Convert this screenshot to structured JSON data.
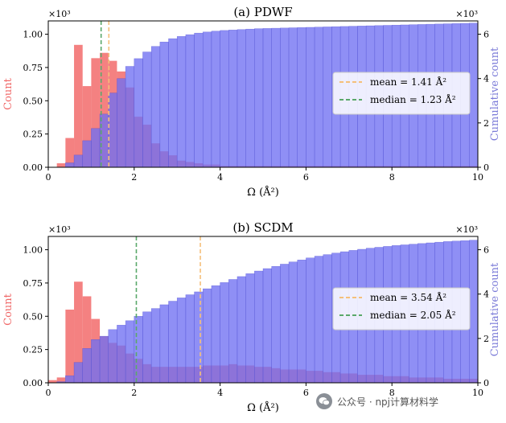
{
  "figure": {
    "watermark_text": "公众号 · npj计算材料学",
    "watermark_icon": "wechat-icon"
  },
  "colors": {
    "count_bars": "#f26b6b",
    "cumulative_bars": "#6f6ff2",
    "overlap": "#6a2bb8",
    "mean_line": "#f5c07a",
    "median_line": "#5aa86a",
    "count_label": "#f06a6a",
    "cumulative_label": "#7b7bd8"
  },
  "chart_data": [
    {
      "type": "bar",
      "title": "(a) PDWF",
      "xlabel": "Ω (Å²)",
      "ylabel_left": "Count",
      "ylabel_right": "Cumulative count",
      "left_multiplier": "×10³",
      "right_multiplier": "×10³",
      "xlim": [
        0,
        10
      ],
      "ylim_left": [
        0,
        1.1
      ],
      "ylim_right": [
        0,
        6.6
      ],
      "x_ticks": [
        0,
        2,
        4,
        6,
        8,
        10
      ],
      "y_ticks_left": [
        "0.00",
        "0.25",
        "0.50",
        "0.75",
        "1.00"
      ],
      "y_ticks_right": [
        0,
        2,
        4,
        6
      ],
      "bin_width": 0.2,
      "bin_starts": [
        0,
        0.2,
        0.4,
        0.6,
        0.8,
        1.0,
        1.2,
        1.4,
        1.6,
        1.8,
        2.0,
        2.2,
        2.4,
        2.6,
        2.8,
        3.0,
        3.2,
        3.4,
        3.6,
        3.8,
        4.0,
        4.2,
        4.4,
        4.6,
        4.8,
        5.0,
        5.2,
        5.4,
        5.6,
        5.8,
        6.0,
        6.2,
        6.4,
        6.6,
        6.8,
        7.0,
        7.2,
        7.4,
        7.6,
        7.8,
        8.0,
        8.2,
        8.4,
        8.6,
        8.8,
        9.0,
        9.2,
        9.4,
        9.6,
        9.8
      ],
      "count_series": {
        "name": "Count",
        "values": [
          0.0,
          0.03,
          0.22,
          0.92,
          0.61,
          0.82,
          0.86,
          0.8,
          0.72,
          0.6,
          0.38,
          0.32,
          0.18,
          0.12,
          0.09,
          0.05,
          0.04,
          0.03,
          0.02,
          0.02,
          0.01,
          0.01,
          0.01,
          0.01,
          0.01,
          0.01,
          0.01,
          0.01,
          0.01,
          0.01,
          0.01,
          0.01,
          0.01,
          0.01,
          0.01,
          0.01,
          0.01,
          0.01,
          0.01,
          0.01,
          0.01,
          0.01,
          0.01,
          0.01,
          0.01,
          0.01,
          0.01,
          0.01,
          0.01,
          0.01
        ]
      },
      "cumulative_series": {
        "name": "Cumulative count",
        "values": [
          0.0,
          0.01,
          0.2,
          0.55,
          1.2,
          1.75,
          2.4,
          3.35,
          4.0,
          4.55,
          4.9,
          5.2,
          5.45,
          5.65,
          5.8,
          5.9,
          5.98,
          6.05,
          6.1,
          6.14,
          6.17,
          6.19,
          6.21,
          6.23,
          6.25,
          6.26,
          6.27,
          6.28,
          6.29,
          6.3,
          6.31,
          6.32,
          6.33,
          6.34,
          6.35,
          6.36,
          6.37,
          6.38,
          6.39,
          6.4,
          6.41,
          6.42,
          6.43,
          6.44,
          6.45,
          6.46,
          6.47,
          6.48,
          6.49,
          6.5
        ]
      },
      "mean": 1.41,
      "median": 1.23,
      "legend": [
        {
          "label": "mean = 1.41 Å²",
          "style": "mean"
        },
        {
          "label": "median = 1.23 Å²",
          "style": "median"
        }
      ],
      "legend_position": "center-right"
    },
    {
      "type": "bar",
      "title": "(b) SCDM",
      "xlabel": "Ω (Å²)",
      "ylabel_left": "Count",
      "ylabel_right": "Cumulative count",
      "left_multiplier": "×10³",
      "right_multiplier": "×10³",
      "xlim": [
        0,
        10
      ],
      "ylim_left": [
        0,
        1.1
      ],
      "ylim_right": [
        0,
        6.6
      ],
      "x_ticks": [
        0,
        2,
        4,
        6,
        8,
        10
      ],
      "y_ticks_left": [
        "0.00",
        "0.25",
        "0.50",
        "0.75",
        "1.00"
      ],
      "y_ticks_right": [
        0,
        2,
        4,
        6
      ],
      "bin_width": 0.2,
      "bin_starts": [
        0,
        0.2,
        0.4,
        0.6,
        0.8,
        1.0,
        1.2,
        1.4,
        1.6,
        1.8,
        2.0,
        2.2,
        2.4,
        2.6,
        2.8,
        3.0,
        3.2,
        3.4,
        3.6,
        3.8,
        4.0,
        4.2,
        4.4,
        4.6,
        4.8,
        5.0,
        5.2,
        5.4,
        5.6,
        5.8,
        6.0,
        6.2,
        6.4,
        6.6,
        6.8,
        7.0,
        7.2,
        7.4,
        7.6,
        7.8,
        8.0,
        8.2,
        8.4,
        8.6,
        8.8,
        9.0,
        9.2,
        9.4,
        9.6,
        9.8
      ],
      "count_series": {
        "name": "Count",
        "values": [
          0.02,
          0.04,
          0.55,
          0.76,
          0.65,
          0.48,
          0.35,
          0.3,
          0.28,
          0.22,
          0.18,
          0.14,
          0.12,
          0.12,
          0.12,
          0.12,
          0.12,
          0.12,
          0.13,
          0.13,
          0.13,
          0.14,
          0.13,
          0.13,
          0.12,
          0.12,
          0.11,
          0.1,
          0.1,
          0.1,
          0.09,
          0.09,
          0.08,
          0.08,
          0.07,
          0.07,
          0.06,
          0.06,
          0.06,
          0.05,
          0.05,
          0.05,
          0.04,
          0.04,
          0.04,
          0.04,
          0.03,
          0.03,
          0.03,
          0.03
        ]
      },
      "cumulative_series": {
        "name": "Cumulative count",
        "values": [
          0.0,
          0.05,
          0.32,
          0.92,
          1.55,
          1.95,
          2.1,
          2.4,
          2.6,
          2.8,
          3.0,
          3.2,
          3.35,
          3.52,
          3.68,
          3.83,
          3.97,
          4.1,
          4.24,
          4.38,
          4.52,
          4.66,
          4.79,
          4.92,
          5.04,
          5.15,
          5.25,
          5.35,
          5.45,
          5.54,
          5.63,
          5.71,
          5.78,
          5.85,
          5.91,
          5.97,
          6.02,
          6.07,
          6.11,
          6.15,
          6.19,
          6.22,
          6.25,
          6.28,
          6.31,
          6.34,
          6.37,
          6.39,
          6.41,
          6.43
        ]
      },
      "mean": 3.54,
      "median": 2.05,
      "legend": [
        {
          "label": "mean = 3.54 Å²",
          "style": "mean"
        },
        {
          "label": "median = 2.05 Å²",
          "style": "median"
        }
      ],
      "legend_position": "center-right"
    }
  ]
}
